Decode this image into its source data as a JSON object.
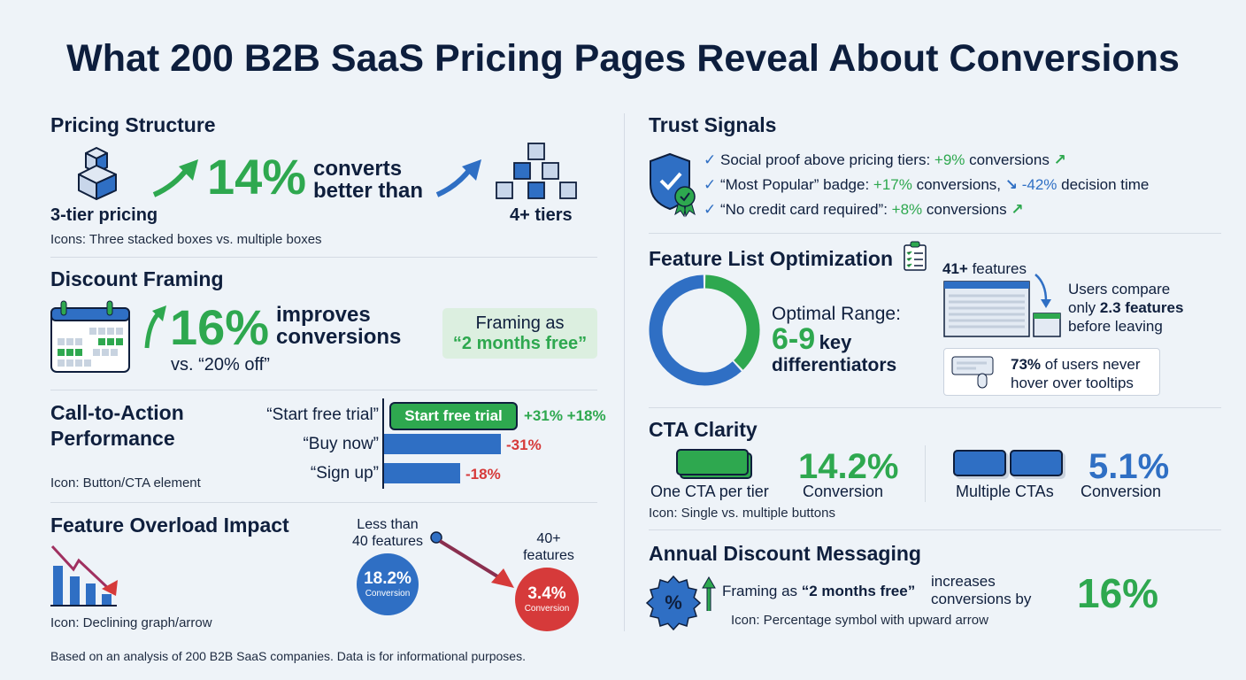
{
  "title": "What 200 B2B SaaS Pricing Pages Reveal About Conversions",
  "colors": {
    "green": "#2ea84f",
    "blue": "#2f6fc4",
    "red": "#d63a3a",
    "navy": "#0f1f3d",
    "background": "#eef3f8"
  },
  "pricing": {
    "heading": "Pricing Structure",
    "stat": "14%",
    "text1": "converts",
    "text2": "better than",
    "left_label": "3-tier pricing",
    "right_label": "4+ tiers",
    "caption": "Icons: Three stacked boxes vs. multiple boxes",
    "icons": [
      "stacked-boxes-icon",
      "multiple-boxes-icon",
      "arrow-up-right-icon"
    ]
  },
  "discount": {
    "heading": "Discount Framing",
    "stat": "16%",
    "text1": "improves",
    "text2": "conversions",
    "vs": "vs. “20% off”",
    "box1": "Framing as",
    "box2": "“2 months free”",
    "icon": "calendar-icon"
  },
  "cta": {
    "heading1": "Call-to-Action",
    "heading2": "Performance",
    "caption": "Icon: Button/CTA element",
    "rows": [
      {
        "label": "“Start free trial”",
        "button": "Start free trial",
        "value": "+31% +18%"
      },
      {
        "label": "“Buy now”",
        "value": "-31%"
      },
      {
        "label": "“Sign up”",
        "value": "-18%"
      }
    ]
  },
  "overload": {
    "heading": "Feature Overload Impact",
    "caption": "Icon: Declining graph/arrow",
    "left1": "Less than",
    "left2": "40 features",
    "left_value": "18.2%",
    "left_sub": "Conversion",
    "right1": "40+",
    "right2": "features",
    "right_value": "3.4%",
    "right_sub": "Conversion",
    "icon": "declining-graph-icon"
  },
  "footer": "Based on an analysis of 200 B2B SaaS companies. Data is for informational purposes.",
  "trust": {
    "heading": "Trust Signals",
    "icon": "shield-check-icon",
    "items": [
      {
        "pre": "Social proof above pricing tiers: ",
        "v1": "+9%",
        "mid": " conversions"
      },
      {
        "pre": "“Most Popular” badge: ",
        "v1": "+17%",
        "mid": " conversions, ",
        "v2": "-42%",
        "post": " decision time"
      },
      {
        "pre": "“No credit card required”: ",
        "v1": "+8%",
        "mid": " conversions"
      }
    ]
  },
  "features": {
    "heading": "Feature List Optimization",
    "optimal": "Optimal Range:",
    "range": "6-9",
    "key": "key",
    "diff": "differentiators",
    "donut_green_fraction": 0.38,
    "count_bold": "41+",
    "count_rest": " features",
    "compare1": "Users compare",
    "compare2a": "only ",
    "compare2b": "2.3 features",
    "compare3": "before leaving",
    "tooltip_bold": "73%",
    "tooltip1": " of users never",
    "tooltip2": "hover over tooltips"
  },
  "clarity": {
    "heading": "CTA Clarity",
    "one_value": "14.2%",
    "one_label": "One CTA per tier",
    "one_sub": "Conversion",
    "multi_value": "5.1%",
    "multi_label": "Multiple CTAs",
    "multi_sub": "Conversion",
    "caption": "Icon: Single vs. multiple buttons"
  },
  "annual": {
    "heading": "Annual Discount Messaging",
    "pre": "Framing as ",
    "bold": "“2 months free”",
    "inc1": "increases",
    "inc2": "conversions by",
    "stat": "16%",
    "caption": "Icon: Percentage symbol with upward arrow",
    "icon": "percent-badge-icon"
  }
}
